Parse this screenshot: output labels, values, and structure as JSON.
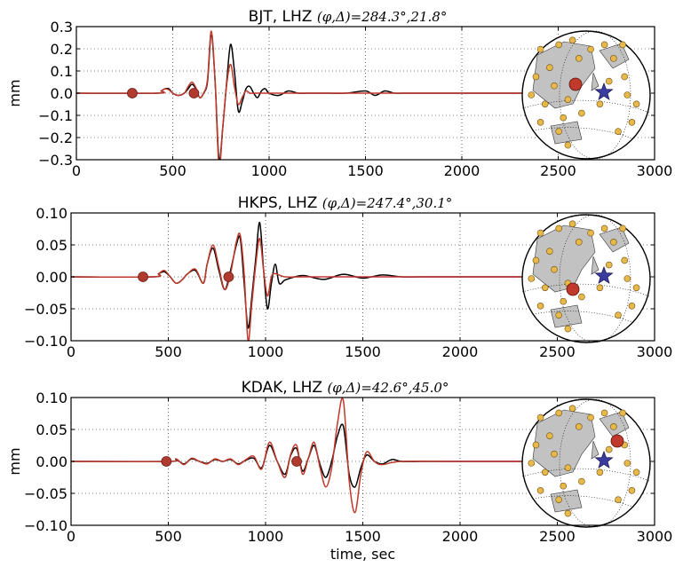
{
  "chart_data": [
    {
      "type": "line",
      "station": "BJT, LHZ",
      "title_math": "(φ,Δ)=284.3°,21.8°",
      "ylabel": "mm",
      "xlabel": "",
      "xlim": [
        0,
        3000
      ],
      "ylim": [
        -0.3,
        0.3
      ],
      "xticks": [
        0,
        500,
        1000,
        1500,
        2000,
        2500,
        3000
      ],
      "yticks": [
        -0.3,
        -0.2,
        -0.1,
        0.0,
        0.1,
        0.2,
        0.3
      ],
      "ytick_labels": [
        "−0.3",
        "−0.2",
        "−0.1",
        "0.0",
        "0.1",
        "0.2",
        "0.3"
      ],
      "grid": true,
      "markers": [
        {
          "x": 290,
          "y": 0.0
        },
        {
          "x": 610,
          "y": 0.0
        }
      ],
      "series": [
        {
          "color": "#000000",
          "x": [
            0,
            420,
            440,
            460,
            480,
            500,
            530,
            560,
            580,
            600,
            620,
            640,
            660,
            680,
            700,
            720,
            740,
            760,
            780,
            800,
            820,
            840,
            860,
            880,
            900,
            920,
            940,
            960,
            980,
            1000,
            1050,
            1100,
            1150,
            1200,
            1300,
            1400,
            1500,
            1550,
            1600,
            1650,
            1700,
            1800,
            1900,
            2000,
            2100,
            2200,
            2300,
            2380
          ],
          "y": [
            0,
            0,
            0.01,
            0.02,
            0.02,
            0.0,
            -0.01,
            0.0,
            0.02,
            0.04,
            0.02,
            -0.02,
            0.0,
            0.05,
            0.26,
            0.05,
            -0.3,
            -0.15,
            0.05,
            0.22,
            0.1,
            -0.08,
            -0.04,
            0.02,
            0.03,
            0.0,
            -0.02,
            0.01,
            0.02,
            0.0,
            -0.01,
            0.01,
            0.0,
            0.0,
            0.0,
            0.0,
            0.01,
            -0.01,
            0.01,
            0.0,
            0.0,
            0.0,
            0.0,
            0.0,
            0.0,
            0.0,
            0.0,
            0.0
          ]
        },
        {
          "color": "#c0392b",
          "x": [
            0,
            420,
            440,
            460,
            480,
            500,
            530,
            560,
            580,
            600,
            620,
            640,
            660,
            680,
            700,
            720,
            740,
            760,
            780,
            800,
            820,
            840,
            860,
            880,
            900,
            920,
            1000,
            1200,
            1500,
            2000,
            2380
          ],
          "y": [
            0,
            0,
            0.01,
            0.02,
            0.015,
            0.0,
            -0.01,
            0.0,
            0.03,
            0.05,
            0.025,
            -0.02,
            0.0,
            0.06,
            0.28,
            0.05,
            -0.33,
            -0.15,
            0.04,
            0.13,
            0.03,
            -0.05,
            -0.02,
            0.01,
            0.0,
            0.0,
            0.0,
            0.0,
            0.0,
            0.0,
            0.0
          ]
        }
      ],
      "map": {
        "source_marker": "upper-left-center",
        "star_marker": "center-right"
      }
    },
    {
      "type": "line",
      "station": "HKPS, LHZ",
      "title_math": "(φ,Δ)=247.4°,30.1°",
      "ylabel": "",
      "xlabel": "",
      "xlim": [
        0,
        3000
      ],
      "ylim": [
        -0.1,
        0.1
      ],
      "xticks": [
        0,
        500,
        1000,
        1500,
        2000,
        2500,
        3000
      ],
      "yticks": [
        -0.1,
        -0.05,
        0.0,
        0.05,
        0.1
      ],
      "ytick_labels": [
        "−0.10",
        "−0.05",
        "0.00",
        "0.05",
        "0.10"
      ],
      "grid": true,
      "markers": [
        {
          "x": 370,
          "y": 0.0
        },
        {
          "x": 810,
          "y": 0.0
        }
      ],
      "series": [
        {
          "color": "#000000",
          "x": [
            0,
            420,
            450,
            480,
            510,
            540,
            570,
            600,
            640,
            680,
            700,
            730,
            760,
            790,
            820,
            850,
            870,
            890,
            910,
            930,
            950,
            970,
            990,
            1010,
            1030,
            1050,
            1070,
            1100,
            1150,
            1200,
            1300,
            1400,
            1500,
            1600,
            1700,
            1800,
            2000,
            2200,
            2380
          ],
          "y": [
            0,
            0,
            0.005,
            0.008,
            0.0,
            -0.01,
            -0.005,
            0.005,
            0.01,
            -0.01,
            0.02,
            0.045,
            0.01,
            -0.02,
            0.01,
            0.05,
            0.06,
            -0.01,
            -0.08,
            -0.03,
            0.03,
            0.085,
            0.01,
            -0.05,
            -0.01,
            0.02,
            -0.01,
            -0.005,
            0.0,
            0.002,
            -0.004,
            0.004,
            -0.002,
            0.003,
            0.0,
            0.0,
            0.0,
            0.0,
            0.0
          ]
        },
        {
          "color": "#c0392b",
          "x": [
            0,
            420,
            450,
            480,
            510,
            540,
            570,
            600,
            640,
            680,
            700,
            730,
            760,
            790,
            820,
            850,
            870,
            890,
            910,
            930,
            950,
            970,
            990,
            1010,
            1030,
            1050,
            1100,
            1200,
            1500,
            2000,
            2380
          ],
          "y": [
            0,
            0,
            0.005,
            0.01,
            0.0,
            -0.01,
            -0.005,
            0.005,
            0.012,
            -0.01,
            0.02,
            0.05,
            0.015,
            -0.02,
            0.005,
            0.055,
            0.065,
            0.005,
            -0.1,
            -0.04,
            0.02,
            0.06,
            0.01,
            -0.03,
            0.0,
            0.005,
            0.0,
            0.0,
            0.0,
            0.0,
            0.0
          ]
        }
      ],
      "map": {
        "source_marker": "lower-left-center",
        "star_marker": "center-right"
      }
    },
    {
      "type": "line",
      "station": "KDAK, LHZ",
      "title_math": "(φ,Δ)=42.6°,45.0°",
      "ylabel": "mm",
      "xlabel": "time, sec",
      "xlim": [
        0,
        3000
      ],
      "ylim": [
        -0.1,
        0.1
      ],
      "xticks": [
        0,
        500,
        1000,
        1500,
        2000,
        2500,
        3000
      ],
      "yticks": [
        -0.1,
        -0.05,
        0.0,
        0.05,
        0.1
      ],
      "ytick_labels": [
        "−0.10",
        "−0.05",
        "0.00",
        "0.05",
        "0.10"
      ],
      "grid": true,
      "markers": [
        {
          "x": 490,
          "y": 0.0
        },
        {
          "x": 1160,
          "y": 0.0
        }
      ],
      "series": [
        {
          "color": "#000000",
          "x": [
            0,
            500,
            540,
            580,
            620,
            660,
            700,
            740,
            780,
            820,
            860,
            900,
            940,
            980,
            1020,
            1060,
            1100,
            1130,
            1160,
            1190,
            1220,
            1250,
            1280,
            1310,
            1340,
            1370,
            1400,
            1430,
            1460,
            1490,
            1520,
            1560,
            1600,
            1650,
            1700,
            1800,
            1900,
            2000,
            2200,
            2380
          ],
          "y": [
            0,
            0,
            0.003,
            -0.004,
            0.004,
            0.0,
            -0.003,
            0.003,
            0.0,
            0.003,
            -0.004,
            0.002,
            0.005,
            -0.01,
            0.025,
            0.0,
            -0.02,
            0.01,
            0.02,
            -0.015,
            0.005,
            0.025,
            -0.005,
            -0.025,
            0.0,
            0.04,
            0.055,
            -0.02,
            -0.04,
            -0.01,
            0.01,
            0.0,
            -0.004,
            0.003,
            0.0,
            0.0,
            0.0,
            0.0,
            0.0,
            0.0
          ]
        },
        {
          "color": "#c0392b",
          "x": [
            0,
            500,
            540,
            580,
            620,
            660,
            700,
            740,
            780,
            820,
            860,
            900,
            940,
            980,
            1020,
            1060,
            1100,
            1130,
            1160,
            1190,
            1220,
            1250,
            1280,
            1310,
            1340,
            1370,
            1400,
            1430,
            1460,
            1490,
            1520,
            1560,
            1600,
            1700,
            2000,
            2380
          ],
          "y": [
            0,
            0,
            0.004,
            -0.005,
            0.005,
            0.0,
            -0.004,
            0.004,
            0.0,
            0.004,
            -0.005,
            0.003,
            0.008,
            -0.012,
            0.03,
            0.0,
            -0.025,
            0.012,
            0.025,
            -0.02,
            0.005,
            0.03,
            -0.01,
            -0.04,
            -0.01,
            0.06,
            0.095,
            -0.03,
            -0.08,
            -0.02,
            0.015,
            0.0,
            -0.005,
            0.0,
            0.0,
            0.0
          ]
        }
      ],
      "map": {
        "source_marker": "upper-right",
        "star_marker": "center-right"
      }
    }
  ]
}
